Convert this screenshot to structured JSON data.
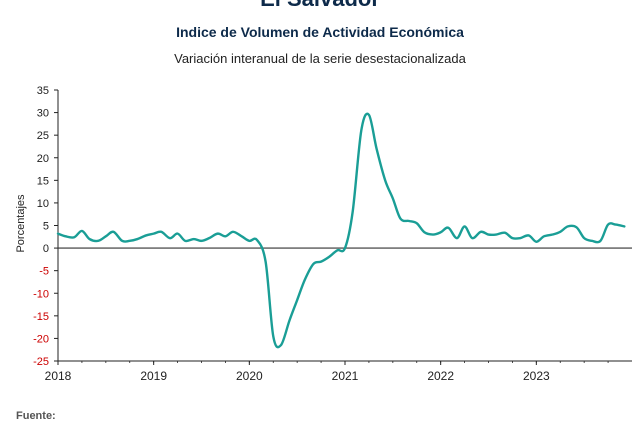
{
  "header": {
    "title": "El Salvador",
    "subtitle": "Indice de Volumen de  Actividad Económica",
    "subtitle2": "Variación interanual de la serie desestacionalizada"
  },
  "footer": {
    "source_label": "Fuente:"
  },
  "colors": {
    "line": "#1a9e96",
    "zero_line": "#333333",
    "negative_ticks": "#cc0000",
    "axis": "#222222"
  },
  "chart_data": {
    "type": "line",
    "title": "El Salvador",
    "ylabel": "Porcentajes",
    "xlabel": "",
    "ylim": [
      -25,
      35
    ],
    "yticks": [
      35,
      30,
      25,
      20,
      15,
      10,
      5,
      0,
      -5,
      -10,
      -15,
      -20,
      -25
    ],
    "xlim": [
      2018.0,
      2024.0
    ],
    "xticks": [
      {
        "label": "2018",
        "value": 2018
      },
      {
        "label": "2019",
        "value": 2019
      },
      {
        "label": "2020",
        "value": 2020
      },
      {
        "label": "2021",
        "value": 2021
      },
      {
        "label": "2022",
        "value": 2022
      },
      {
        "label": "2023",
        "value": 2023
      }
    ],
    "grid": false,
    "series": [
      {
        "name": "",
        "x": [
          2018.0,
          2018.08,
          2018.17,
          2018.25,
          2018.33,
          2018.42,
          2018.5,
          2018.58,
          2018.67,
          2018.75,
          2018.83,
          2018.92,
          2019.0,
          2019.08,
          2019.17,
          2019.25,
          2019.33,
          2019.42,
          2019.5,
          2019.58,
          2019.67,
          2019.75,
          2019.83,
          2019.92,
          2020.0,
          2020.08,
          2020.17,
          2020.25,
          2020.33,
          2020.42,
          2020.5,
          2020.58,
          2020.67,
          2020.75,
          2020.83,
          2020.92,
          2021.0,
          2021.08,
          2021.17,
          2021.25,
          2021.33,
          2021.42,
          2021.5,
          2021.58,
          2021.67,
          2021.75,
          2021.83,
          2021.92,
          2022.0,
          2022.08,
          2022.17,
          2022.25,
          2022.33,
          2022.42,
          2022.5,
          2022.58,
          2022.67,
          2022.75,
          2022.83,
          2022.92,
          2023.0,
          2023.08,
          2023.17,
          2023.25,
          2023.33,
          2023.42,
          2023.5,
          2023.58,
          2023.67,
          2023.75,
          2023.83,
          2023.92
        ],
        "values": [
          3.2,
          2.6,
          2.4,
          3.8,
          2.0,
          1.6,
          2.6,
          3.6,
          1.6,
          1.6,
          2.0,
          2.8,
          3.2,
          3.6,
          2.2,
          3.2,
          1.6,
          2.0,
          1.6,
          2.2,
          3.2,
          2.6,
          3.6,
          2.6,
          1.6,
          1.8,
          -3.0,
          -19.5,
          -21.5,
          -16.0,
          -11.5,
          -7.0,
          -3.5,
          -3.0,
          -2.0,
          -0.5,
          0.0,
          8.0,
          26.0,
          29.5,
          22.0,
          15.0,
          11.0,
          6.5,
          6.0,
          5.5,
          3.5,
          3.0,
          3.5,
          4.5,
          2.2,
          4.8,
          2.2,
          3.6,
          3.0,
          3.0,
          3.4,
          2.2,
          2.2,
          2.8,
          1.4,
          2.6,
          3.0,
          3.6,
          4.8,
          4.6,
          2.2,
          1.6,
          1.6,
          5.2,
          5.2,
          4.8
        ]
      }
    ]
  }
}
